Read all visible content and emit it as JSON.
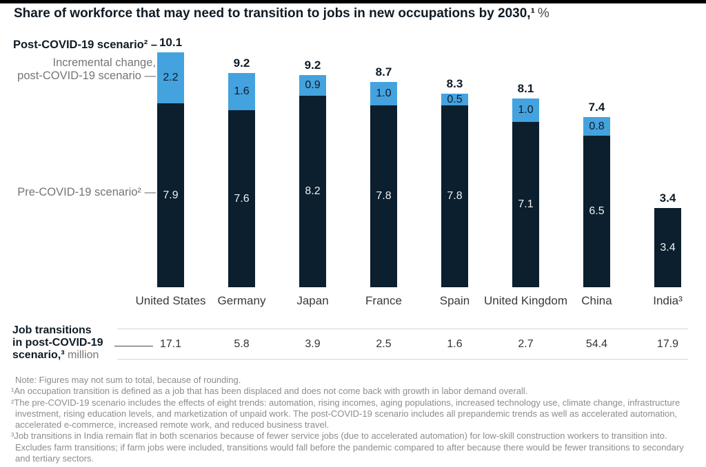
{
  "title": {
    "main": "Share of workforce that may need to transition to jobs in new occupations by 2030,¹",
    "suffix": "%"
  },
  "annotations": {
    "post_covid_label": "Post-COVID-19 scenario² –",
    "incremental_label_line1": "Incremental change,",
    "incremental_label_line2": "post-COVID-19 scenario —",
    "pre_covid_label": "Pre-COVID-19 scenario² —"
  },
  "chart_data": {
    "type": "bar",
    "stacked": true,
    "title": "Share of workforce that may need to transition to jobs in new occupations by 2030, %",
    "unit": "%",
    "grid": false,
    "legend_position": "left annotations",
    "ylim": [
      0,
      10.1
    ],
    "categories": [
      "United States",
      "Germany",
      "Japan",
      "France",
      "Spain",
      "United Kingdom",
      "China",
      "India³"
    ],
    "series": [
      {
        "name": "Pre-COVID-19 scenario",
        "color": "#0b1f2e",
        "values": [
          7.9,
          7.6,
          8.2,
          7.8,
          7.8,
          7.1,
          6.5,
          3.4
        ],
        "labels": [
          "7.9",
          "7.6",
          "8.2",
          "7.8",
          "7.8",
          "7.1",
          "6.5",
          "3.4"
        ]
      },
      {
        "name": "Incremental change, post-COVID-19 scenario",
        "color": "#44a2df",
        "values": [
          2.2,
          1.6,
          0.9,
          1.0,
          0.5,
          1.0,
          0.8,
          0
        ],
        "labels": [
          "2.2",
          "1.6",
          "0.9",
          "1.0",
          "0.5",
          "1.0",
          "0.8",
          ""
        ]
      }
    ],
    "totals": {
      "name": "Post-COVID-19 scenario",
      "values": [
        10.1,
        9.2,
        9.2,
        8.7,
        8.3,
        8.1,
        7.4,
        3.4
      ],
      "labels": [
        "10.1",
        "9.2",
        "9.2",
        "8.7",
        "8.3",
        "8.1",
        "7.4",
        "3.4"
      ]
    }
  },
  "table": {
    "header_line1": "Job transitions",
    "header_line2": "in post-COVID-19",
    "header_bold3": "scenario,³",
    "header_gray3": " million",
    "values": [
      "17.1",
      "5.8",
      "3.9",
      "2.5",
      "1.6",
      "2.7",
      "54.4",
      "17.9"
    ]
  },
  "footnotes": [
    "Note: Figures may not sum to total, because of rounding.",
    "¹An occupation transition is defined as a job that has been displaced and does not come back with growth in labor demand overall.",
    "²The pre-COVID-19 scenario includes the effects of eight trends: automation, rising incomes, aging populations, increased technology use, climate change, infrastructure investment, rising education levels, and marketization of unpaid work. The post-COVID-19 scenario includes all prepandemic trends as well as accelerated automation, accelerated e-commerce, increased remote work, and reduced business travel.",
    "³Job transitions in India remain flat in both scenarios because of fewer service jobs (due to accelerated automation) for low-skill construction workers to transition into. Excludes farm transitions; if farm jobs were included, transitions would fall before the pandemic compared to after because there would be fewer transitions to secondary and tertiary sectors."
  ]
}
